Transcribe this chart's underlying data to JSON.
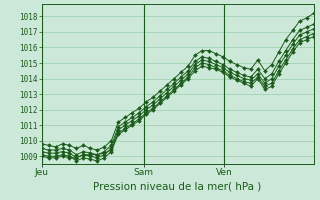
{
  "bg_color": "#cce8d8",
  "grid_color": "#99ccaa",
  "line_color": "#1a5c1a",
  "marker_color": "#1a5c1a",
  "ylim": [
    1008.5,
    1018.8
  ],
  "yticks": [
    1009,
    1010,
    1011,
    1012,
    1013,
    1014,
    1015,
    1016,
    1017,
    1018
  ],
  "xlabel": "Pression niveau de la mer( hPa )",
  "xlabel_fontsize": 7.5,
  "xtick_labels": [
    "Jeu",
    "Sam",
    "Ven"
  ],
  "xtick_positions": [
    0.0,
    0.375,
    0.67
  ],
  "vline_positions": [
    0.0,
    0.375,
    0.67
  ],
  "n_points": 40,
  "series": [
    [
      1009.8,
      1009.7,
      1009.6,
      1009.8,
      1009.7,
      1009.5,
      1009.7,
      1009.5,
      1009.4,
      1009.6,
      1010.0,
      1011.2,
      1011.5,
      1011.8,
      1012.1,
      1012.5,
      1012.8,
      1013.2,
      1013.6,
      1014.0,
      1014.4,
      1014.8,
      1015.5,
      1015.8,
      1015.8,
      1015.6,
      1015.4,
      1015.1,
      1014.9,
      1014.7,
      1014.6,
      1015.2,
      1014.5,
      1014.9,
      1015.7,
      1016.5,
      1017.1,
      1017.7,
      1017.9,
      1018.2
    ],
    [
      1009.5,
      1009.4,
      1009.4,
      1009.5,
      1009.4,
      1009.1,
      1009.3,
      1009.2,
      1009.1,
      1009.3,
      1009.7,
      1010.9,
      1011.2,
      1011.5,
      1011.8,
      1012.2,
      1012.5,
      1012.9,
      1013.3,
      1013.7,
      1014.1,
      1014.5,
      1015.1,
      1015.4,
      1015.3,
      1015.1,
      1014.9,
      1014.6,
      1014.4,
      1014.2,
      1014.1,
      1014.6,
      1014.0,
      1014.3,
      1015.1,
      1015.8,
      1016.5,
      1017.1,
      1017.3,
      1017.5
    ],
    [
      1009.3,
      1009.2,
      1009.2,
      1009.3,
      1009.2,
      1008.9,
      1009.1,
      1009.0,
      1008.9,
      1009.1,
      1009.5,
      1010.7,
      1011.0,
      1011.3,
      1011.6,
      1012.0,
      1012.3,
      1012.7,
      1013.1,
      1013.5,
      1013.9,
      1014.3,
      1014.9,
      1015.2,
      1015.1,
      1014.9,
      1014.7,
      1014.4,
      1014.2,
      1014.0,
      1013.9,
      1014.3,
      1013.7,
      1014.0,
      1014.8,
      1015.5,
      1016.2,
      1016.8,
      1017.0,
      1017.2
    ],
    [
      1009.1,
      1009.0,
      1009.0,
      1009.1,
      1009.0,
      1008.7,
      1008.9,
      1008.8,
      1008.7,
      1008.9,
      1009.3,
      1010.5,
      1010.8,
      1011.1,
      1011.4,
      1011.8,
      1012.1,
      1012.5,
      1012.9,
      1013.3,
      1013.7,
      1014.1,
      1014.7,
      1015.0,
      1014.9,
      1014.7,
      1014.5,
      1014.2,
      1014.0,
      1013.8,
      1013.7,
      1014.1,
      1013.5,
      1013.7,
      1014.5,
      1015.2,
      1015.9,
      1016.5,
      1016.7,
      1016.9
    ],
    [
      1009.0,
      1008.9,
      1008.9,
      1009.0,
      1008.9,
      1008.9,
      1009.1,
      1009.1,
      1009.1,
      1009.2,
      1009.4,
      1010.4,
      1010.7,
      1011.0,
      1011.3,
      1011.7,
      1012.0,
      1012.4,
      1012.8,
      1013.2,
      1013.6,
      1014.0,
      1014.5,
      1014.8,
      1014.7,
      1014.6,
      1014.4,
      1014.1,
      1013.9,
      1013.7,
      1013.5,
      1014.0,
      1013.3,
      1013.5,
      1014.3,
      1015.0,
      1015.7,
      1016.3,
      1016.5,
      1016.7
    ]
  ]
}
